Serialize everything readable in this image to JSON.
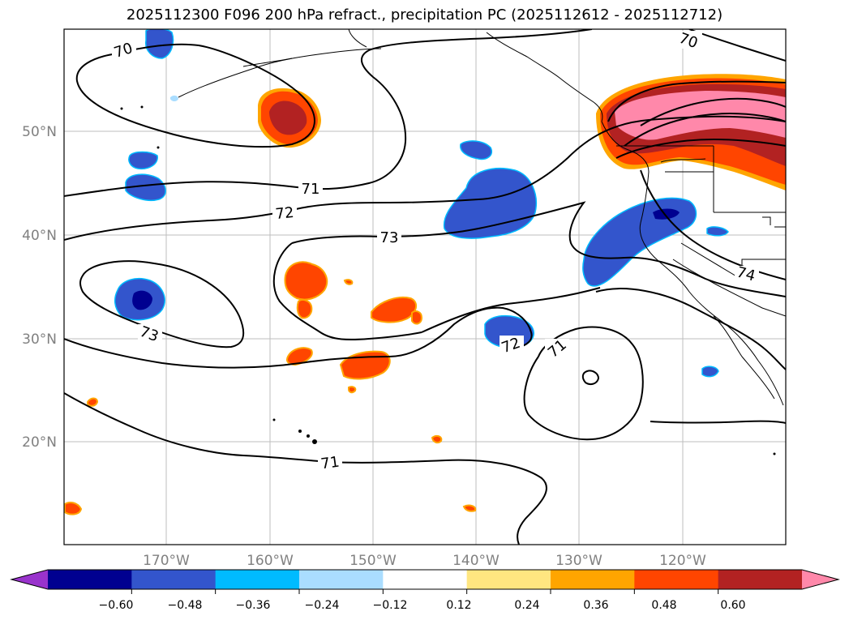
{
  "title": "2025112300 F096 200 hPa refract., precipitation PC (2025112612 - 2025112712)",
  "map": {
    "lat_labels": [
      "50°N",
      "40°N",
      "30°N",
      "20°N"
    ],
    "lon_labels": [
      "170°W",
      "160°W",
      "150°W",
      "140°W",
      "130°W",
      "120°W"
    ],
    "contour_labels": [
      "70",
      "70",
      "71",
      "72",
      "73",
      "73",
      "72",
      "71",
      "71",
      "74"
    ],
    "grid": true
  },
  "colorbar": {
    "ticks": [
      "−0.60",
      "−0.48",
      "−0.36",
      "−0.24",
      "−0.12",
      "0.12",
      "0.24",
      "0.36",
      "0.48",
      "0.60"
    ],
    "colors": [
      "#9933cc",
      "#000090",
      "#3355cc",
      "#00bbff",
      "#aaddff",
      "#ffffff",
      "#ffe680",
      "#ffa500",
      "#ff4500",
      "#b22222",
      "#ff88aa"
    ],
    "extend": "both"
  }
}
